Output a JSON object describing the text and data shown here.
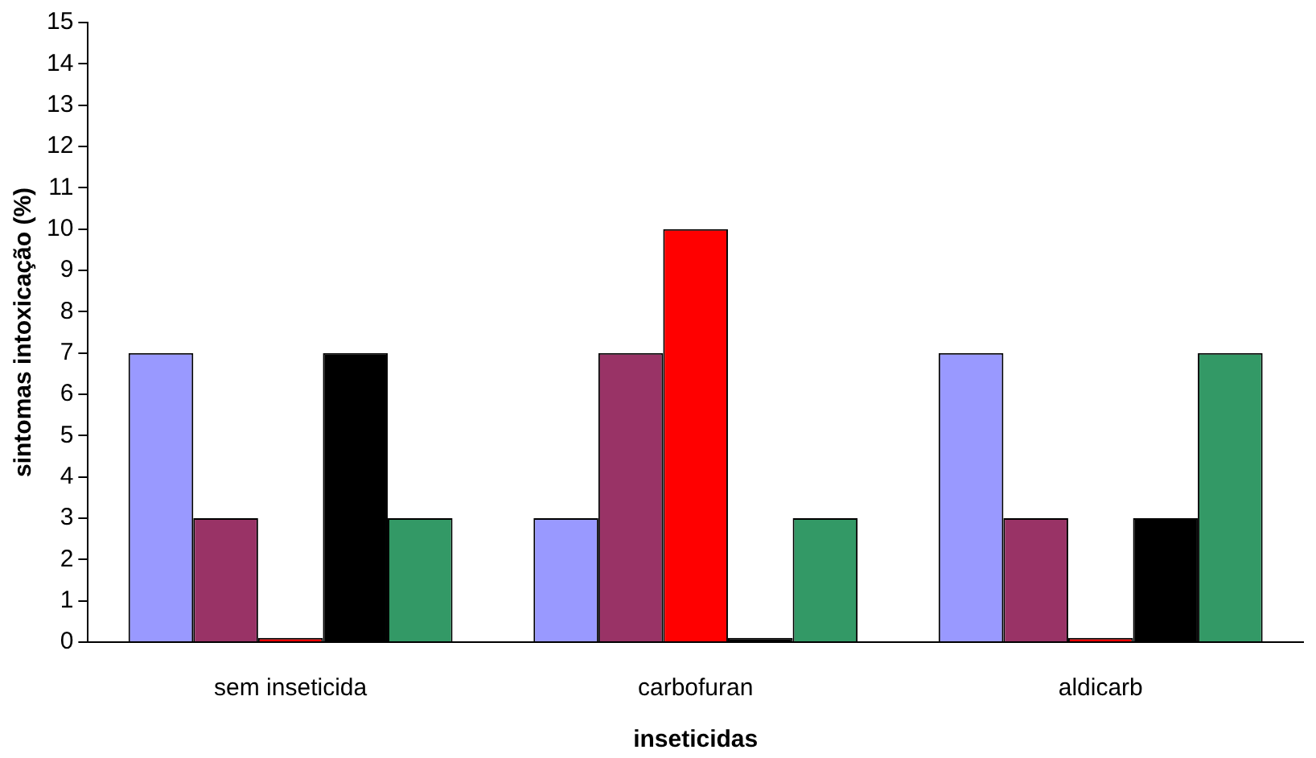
{
  "chart_data": {
    "type": "bar",
    "xlabel": "inseticidas",
    "ylabel": "sintomas intoxicação (%)",
    "categories": [
      "sem inseticida",
      "carbofuran",
      "aldicarb"
    ],
    "series": [
      {
        "color": "#9999ff",
        "values": [
          7,
          3,
          7
        ]
      },
      {
        "color": "#993366",
        "values": [
          3,
          7,
          3
        ]
      },
      {
        "color": "#ff0000",
        "values": [
          0.1,
          10,
          0.1
        ]
      },
      {
        "color": "#000000",
        "values": [
          7,
          0.1,
          3
        ]
      },
      {
        "color": "#339966",
        "values": [
          3,
          3,
          7
        ]
      }
    ],
    "ylim": [
      0,
      15
    ],
    "yticks": [
      0,
      1,
      2,
      3,
      4,
      5,
      6,
      7,
      8,
      9,
      10,
      11,
      12,
      13,
      14,
      15
    ],
    "grid": false,
    "legend": false
  }
}
